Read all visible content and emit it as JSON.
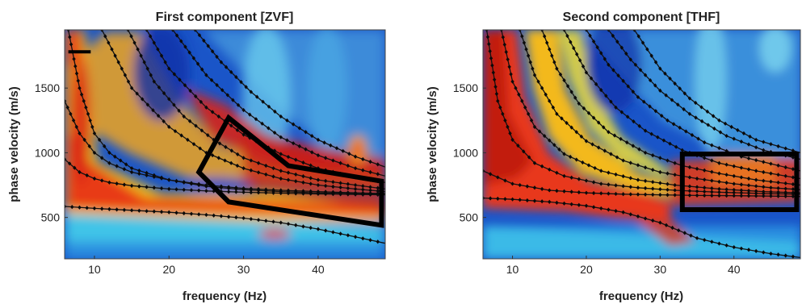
{
  "chart_data": [
    {
      "type": "heatmap",
      "title": "First component [ZVF]",
      "xlabel": "frequency (Hz)",
      "ylabel": "phase velocity (m/s)",
      "xlim": [
        6,
        49
      ],
      "ylim": [
        180,
        1950
      ],
      "xticks": [
        10,
        20,
        30,
        40
      ],
      "yticks": [
        500,
        1000,
        1500
      ],
      "colormap": "jet",
      "grid": false,
      "series": [
        {
          "x": [
            6.5,
            8,
            10,
            12,
            15,
            20,
            25,
            30,
            35,
            40,
            45,
            49
          ],
          "y": [
            1950,
            1500,
            1150,
            1000,
            880,
            790,
            740,
            715,
            700,
            690,
            685,
            680
          ]
        },
        {
          "x": [
            6,
            8,
            10,
            12,
            15,
            20,
            25,
            30,
            35,
            40,
            45,
            49
          ],
          "y": [
            1400,
            1150,
            1000,
            920,
            850,
            790,
            750,
            725,
            710,
            700,
            690,
            685
          ]
        },
        {
          "x": [
            6,
            8,
            10,
            12,
            15,
            20,
            25,
            30,
            35,
            40,
            45,
            49
          ],
          "y": [
            950,
            850,
            800,
            770,
            745,
            720,
            705,
            695,
            688,
            682,
            678,
            675
          ]
        },
        {
          "x": [
            6,
            10,
            15,
            20,
            25,
            30,
            35,
            40,
            45,
            49
          ],
          "y": [
            585,
            570,
            555,
            540,
            520,
            495,
            460,
            410,
            350,
            300
          ]
        },
        {
          "x": [
            11,
            15,
            20,
            25,
            30,
            35,
            40,
            45,
            49
          ],
          "y": [
            1950,
            1500,
            1200,
            1000,
            880,
            800,
            750,
            720,
            700
          ]
        },
        {
          "x": [
            14.5,
            18,
            22,
            26,
            30,
            35,
            40,
            45,
            49
          ],
          "y": [
            1950,
            1550,
            1280,
            1100,
            960,
            860,
            790,
            750,
            720
          ]
        },
        {
          "x": [
            17,
            20,
            25,
            30,
            35,
            40,
            45,
            49
          ],
          "y": [
            1950,
            1650,
            1350,
            1140,
            990,
            880,
            810,
            770
          ]
        },
        {
          "x": [
            20.5,
            25,
            30,
            35,
            40,
            45,
            49
          ],
          "y": [
            1950,
            1600,
            1330,
            1120,
            980,
            880,
            820
          ]
        },
        {
          "x": [
            23.5,
            27,
            31,
            35,
            40,
            45,
            49
          ],
          "y": [
            1950,
            1700,
            1470,
            1280,
            1100,
            970,
            890
          ]
        }
      ],
      "highlight_box": {
        "x": [
          24,
          28,
          36,
          48.5,
          48.5,
          28
        ],
        "y": [
          850,
          1270,
          900,
          780,
          440,
          620
        ]
      },
      "annotation_segment": {
        "x": [
          6.5,
          9.5
        ],
        "y": [
          1780,
          1780
        ]
      }
    },
    {
      "type": "heatmap",
      "title": "Second component [THF]",
      "xlabel": "frequency (Hz)",
      "ylabel": "phase velocity (m/s)",
      "xlim": [
        6,
        49
      ],
      "ylim": [
        180,
        1950
      ],
      "xticks": [
        10,
        20,
        30,
        40
      ],
      "yticks": [
        500,
        1000,
        1500
      ],
      "colormap": "jet",
      "grid": false,
      "series": [
        {
          "x": [
            6,
            10,
            15,
            20,
            25,
            30,
            35,
            40,
            45,
            49
          ],
          "y": [
            650,
            640,
            620,
            590,
            540,
            460,
            340,
            270,
            220,
            190
          ]
        },
        {
          "x": [
            6,
            10,
            15,
            20,
            25,
            30,
            35,
            40,
            45,
            49
          ],
          "y": [
            860,
            760,
            710,
            690,
            680,
            675,
            670,
            668,
            665,
            662
          ]
        },
        {
          "x": [
            6.5,
            8,
            10,
            13,
            17,
            22,
            27,
            32,
            38,
            44,
            49
          ],
          "y": [
            1950,
            1400,
            1100,
            920,
            820,
            760,
            730,
            710,
            695,
            685,
            680
          ]
        },
        {
          "x": [
            8.5,
            10,
            13,
            17,
            22,
            27,
            32,
            38,
            44,
            49
          ],
          "y": [
            1950,
            1550,
            1200,
            990,
            860,
            790,
            750,
            720,
            700,
            690
          ]
        },
        {
          "x": [
            11,
            13,
            16,
            20,
            25,
            30,
            35,
            40,
            45,
            49
          ],
          "y": [
            1950,
            1600,
            1300,
            1090,
            940,
            850,
            800,
            760,
            730,
            715
          ]
        },
        {
          "x": [
            14,
            16,
            19,
            23,
            28,
            33,
            38,
            43,
            49
          ],
          "y": [
            1950,
            1650,
            1380,
            1160,
            1000,
            900,
            840,
            790,
            750
          ]
        },
        {
          "x": [
            17,
            20,
            24,
            28,
            33,
            38,
            43,
            49
          ],
          "y": [
            1950,
            1620,
            1350,
            1170,
            1020,
            920,
            860,
            800
          ]
        },
        {
          "x": [
            20,
            23,
            27,
            31,
            36,
            41,
            49
          ],
          "y": [
            1950,
            1680,
            1430,
            1250,
            1080,
            970,
            860
          ]
        },
        {
          "x": [
            23,
            26,
            30,
            34,
            39,
            44,
            49
          ],
          "y": [
            1950,
            1720,
            1480,
            1300,
            1130,
            1020,
            950
          ]
        },
        {
          "x": [
            26.5,
            30,
            34,
            38,
            43,
            49
          ],
          "y": [
            1950,
            1650,
            1420,
            1250,
            1100,
            1000
          ]
        }
      ],
      "highlight_box": {
        "x": [
          33,
          48.5,
          48.5,
          33
        ],
        "y": [
          990,
          990,
          560,
          560
        ]
      }
    }
  ]
}
